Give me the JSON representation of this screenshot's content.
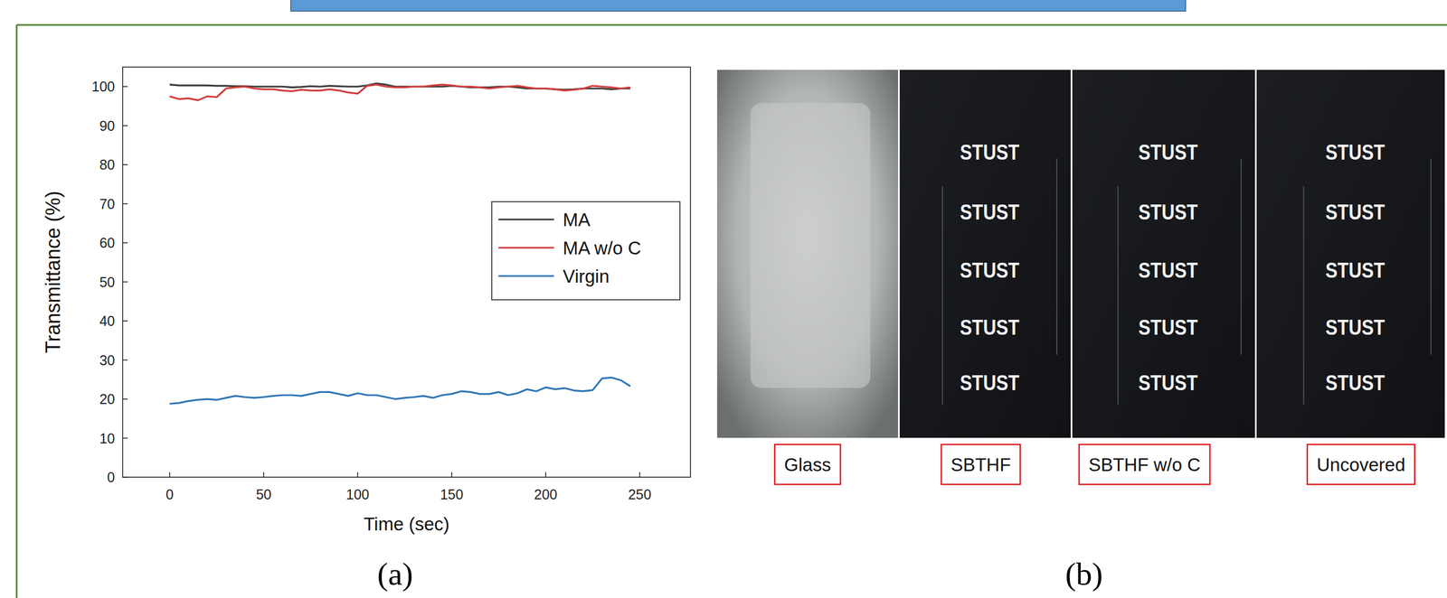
{
  "chart_data": {
    "type": "line",
    "panel_label": "(a)",
    "x_label": "Time (sec)",
    "y_label": "Transmittance (%)",
    "x": [
      0,
      5,
      10,
      15,
      20,
      25,
      30,
      35,
      40,
      45,
      50,
      55,
      60,
      65,
      70,
      75,
      80,
      85,
      90,
      95,
      100,
      105,
      110,
      115,
      120,
      125,
      130,
      135,
      140,
      145,
      150,
      155,
      160,
      165,
      170,
      175,
      180,
      185,
      190,
      195,
      200,
      205,
      210,
      215,
      220,
      225,
      230,
      235,
      240,
      245
    ],
    "series": [
      {
        "name": "MA",
        "color": "#3a3a3a",
        "values": [
          100.5,
          100.3,
          100.3,
          100.3,
          100.3,
          100.2,
          100.2,
          100.1,
          100.1,
          100.0,
          100.0,
          100.0,
          100.0,
          99.8,
          99.9,
          100.1,
          100.0,
          100.2,
          100.1,
          100.0,
          100.0,
          100.3,
          100.8,
          100.5,
          100.0,
          100.0,
          100.0,
          100.0,
          100.0,
          100.0,
          100.2,
          100.0,
          99.8,
          99.8,
          99.8,
          100.0,
          100.0,
          99.8,
          99.5,
          99.5,
          99.5,
          99.3,
          99.2,
          99.3,
          99.5,
          99.5,
          99.5,
          99.3,
          99.5,
          99.5
        ]
      },
      {
        "name": "MA w/o C",
        "color": "#d23c3c",
        "values": [
          97.5,
          96.8,
          97.0,
          96.5,
          97.5,
          97.3,
          99.5,
          99.8,
          100.0,
          99.5,
          99.3,
          99.3,
          99.0,
          98.8,
          99.2,
          99.0,
          99.0,
          99.3,
          99.0,
          98.5,
          98.2,
          100.2,
          100.5,
          100.0,
          99.8,
          99.8,
          100.0,
          100.0,
          100.3,
          100.5,
          100.3,
          100.0,
          100.0,
          99.8,
          99.5,
          99.8,
          100.0,
          100.2,
          99.8,
          99.5,
          99.5,
          99.3,
          99.0,
          99.2,
          99.5,
          100.2,
          100.0,
          99.8,
          99.5,
          99.8
        ]
      },
      {
        "name": "Virgin",
        "color": "#2e75b6",
        "values": [
          18.8,
          19.0,
          19.5,
          19.8,
          20.0,
          19.8,
          20.3,
          20.8,
          20.5,
          20.3,
          20.5,
          20.8,
          21.0,
          21.0,
          20.8,
          21.3,
          21.8,
          21.8,
          21.3,
          20.8,
          21.5,
          21.0,
          21.0,
          20.5,
          20.0,
          20.3,
          20.5,
          20.8,
          20.3,
          21.0,
          21.3,
          22.0,
          21.8,
          21.3,
          21.3,
          21.8,
          21.0,
          21.5,
          22.5,
          22.0,
          23.0,
          22.5,
          22.8,
          22.2,
          22.0,
          22.3,
          25.3,
          25.5,
          24.8,
          23.3
        ]
      }
    ],
    "xlim": [
      -25,
      277
    ],
    "ylim": [
      0,
      105
    ],
    "xticks": [
      0,
      50,
      100,
      150,
      200,
      250
    ],
    "yticks": [
      0,
      10,
      20,
      30,
      40,
      50,
      60,
      70,
      80,
      90,
      100
    ],
    "grid": false,
    "legend": "right"
  },
  "photos": {
    "panel_label": "(b)",
    "panels": [
      {
        "caption": "Glass",
        "marks": []
      },
      {
        "caption": "SBTHF",
        "marks": [
          "STUST",
          "STUST",
          "STUST",
          "STUST",
          "STUST"
        ]
      },
      {
        "caption": "SBTHF w/o C",
        "marks": [
          "STUST",
          "STUST",
          "STUST",
          "STUST",
          "STUST"
        ]
      },
      {
        "caption": "Uncovered",
        "marks": [
          "STUST",
          "STUST",
          "STUST",
          "STUST",
          "STUST"
        ]
      }
    ]
  }
}
